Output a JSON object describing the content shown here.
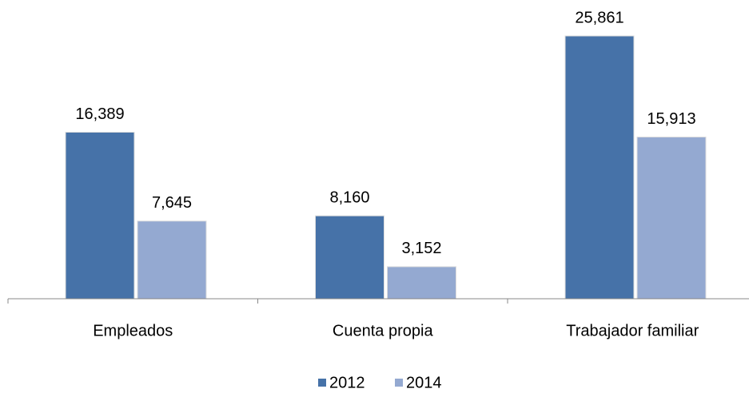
{
  "chart_data": {
    "type": "bar",
    "categories": [
      "Empleados",
      "Cuenta propia",
      "Trabajador familiar"
    ],
    "series": [
      {
        "name": "2012",
        "color": "#4672a8",
        "values": [
          16389,
          8160,
          25861
        ],
        "value_labels": [
          "16,389",
          "8,160",
          "25,861"
        ]
      },
      {
        "name": "2014",
        "color": "#94a9d1",
        "values": [
          7645,
          3152,
          15913
        ],
        "value_labels": [
          "7,645",
          "3,152",
          "15,913"
        ]
      }
    ],
    "legend": "bottom"
  }
}
